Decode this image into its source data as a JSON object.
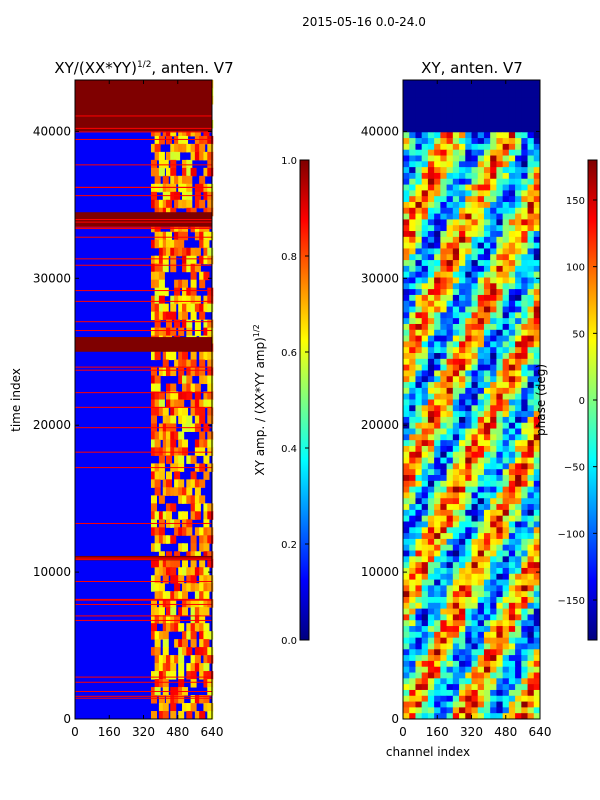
{
  "figure": {
    "suptitle": "2015-05-16 0.0-24.0"
  },
  "chart_data": [
    {
      "type": "heatmap",
      "title": "XY/(XX*YY)",
      "title_superscript": "1/2",
      "title_suffix": ", anten. V7",
      "xlabel": "",
      "ylabel": "time index",
      "xlim": [
        0,
        640
      ],
      "ylim": [
        0,
        43500
      ],
      "xticks": [
        0,
        160,
        320,
        480,
        640
      ],
      "yticks": [
        0,
        10000,
        20000,
        30000,
        40000
      ],
      "colormap": "jet",
      "saturated_time_bands": [
        [
          40000,
          43500
        ],
        [
          33500,
          34500
        ],
        [
          25000,
          26000
        ],
        [
          10800,
          11100
        ]
      ],
      "colorbar": {
        "label": "XY amp. / (XX*YY amp)",
        "label_superscript": "1/2",
        "range": [
          0.0,
          1.0
        ],
        "ticks": [
          "0.0",
          "0.2",
          "0.4",
          "0.6",
          "0.8",
          "1.0"
        ]
      }
    },
    {
      "type": "heatmap",
      "title": "XY, anten. V7",
      "xlabel": "channel index",
      "ylabel": "",
      "xlim": [
        0,
        640
      ],
      "ylim": [
        0,
        43500
      ],
      "xticks": [
        0,
        160,
        320,
        480,
        640
      ],
      "yticks": [
        0,
        10000,
        20000,
        30000,
        40000
      ],
      "colormap": "jet",
      "colorbar": {
        "label": "phase (deg)",
        "range": [
          -180,
          180
        ],
        "ticks": [
          "150",
          "100",
          "50",
          "0",
          "−50",
          "−100",
          "−150"
        ]
      }
    }
  ],
  "colors": {
    "jet": [
      "#00007f",
      "#0000ff",
      "#007fff",
      "#00ffff",
      "#7fff7f",
      "#ffff00",
      "#ff7f00",
      "#ff0000",
      "#7f0000"
    ]
  }
}
